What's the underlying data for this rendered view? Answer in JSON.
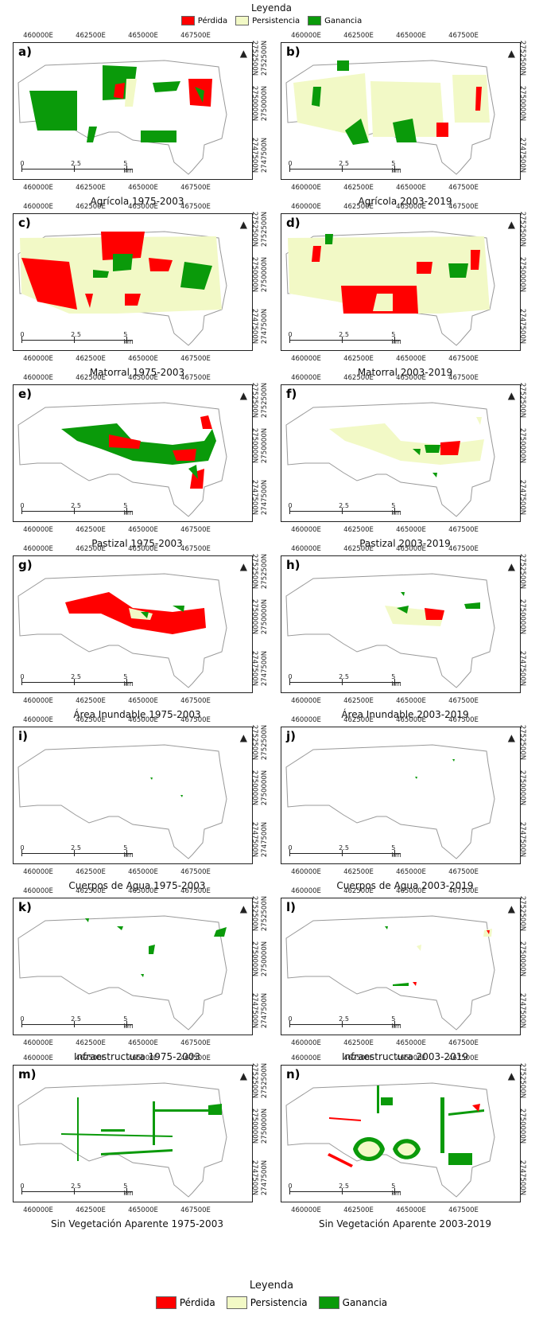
{
  "legend": {
    "title": "Leyenda",
    "items": [
      {
        "label": "Pérdida",
        "color": "#ff0000"
      },
      {
        "label": "Persistencia",
        "color": "#f2f9c6"
      },
      {
        "label": "Ganancia",
        "color": "#0a9a0a"
      }
    ]
  },
  "axes": {
    "x_ticks": [
      "460000E",
      "462500E",
      "465000E",
      "467500E"
    ],
    "y_ticks": [
      "2752500N",
      "2750000N",
      "2747500N"
    ]
  },
  "scalebar": {
    "ticks": [
      "0",
      "2.5",
      "5 km"
    ]
  },
  "north_symbol": "north-arrow",
  "panels": [
    {
      "label": "a)",
      "caption": "Agrícola 1975-2003"
    },
    {
      "label": "b)",
      "caption": "Agrícola 2003-2019"
    },
    {
      "label": "c)",
      "caption": "Matorral 1975-2003"
    },
    {
      "label": "d)",
      "caption": "Matorral 2003-2019"
    },
    {
      "label": "e)",
      "caption": "Pastizal 1975-2003"
    },
    {
      "label": "f)",
      "caption": "Pastizal 2003-2019"
    },
    {
      "label": "g)",
      "caption": "Área Inundable 1975-2003"
    },
    {
      "label": "h)",
      "caption": "Área Inundable 2003-2019"
    },
    {
      "label": "i)",
      "caption": "Cuerpos de Agua 1975-2003"
    },
    {
      "label": "j)",
      "caption": "Cuerpos de Agua 2003-2019"
    },
    {
      "label": "k)",
      "caption": "Infraestructura 1975-2003"
    },
    {
      "label": "l)",
      "caption": "Infraestructura 2003-2019"
    },
    {
      "label": "m)",
      "caption": "Sin Vegetación Aparente 1975-2003"
    },
    {
      "label": "n)",
      "caption": "Sin Vegetación Aparente 2003-2019"
    }
  ]
}
